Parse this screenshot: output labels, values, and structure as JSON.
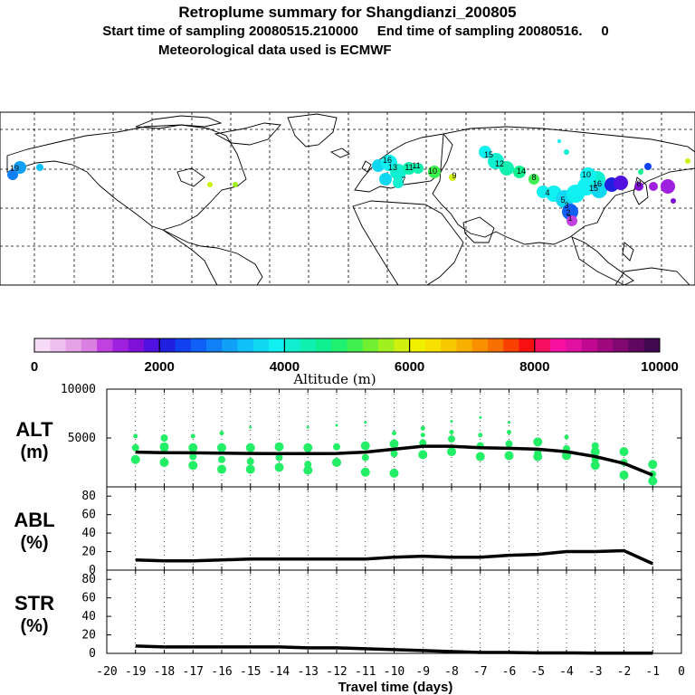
{
  "title": {
    "line1": "Retroplume summary for Shangdianzi_200805",
    "line2": "Start time of sampling 20080515.210000     End time of sampling 20080516.     0",
    "line3": "Meteorological data used is ECMWF"
  },
  "colorbar": {
    "ticks": [
      "0",
      "2000",
      "4000",
      "6000",
      "8000",
      "10000"
    ],
    "label": "Altitude (m)",
    "colors": [
      "#f6dcf6",
      "#efc0ef",
      "#e6a2e6",
      "#da80e0",
      "#c040e0",
      "#a020e0",
      "#8010d8",
      "#5010e0",
      "#2020e0",
      "#1040f0",
      "#1060f8",
      "#1080f8",
      "#10a0f8",
      "#10c0f8",
      "#10d8f0",
      "#10f0f0",
      "#10f0d0",
      "#10f0b0",
      "#10f090",
      "#20f070",
      "#40f050",
      "#70f030",
      "#a0f020",
      "#d0f010",
      "#f0f000",
      "#f8e000",
      "#f8c800",
      "#f8b000",
      "#f89000",
      "#f87000",
      "#f84000",
      "#f81010",
      "#f81060",
      "#f810a0",
      "#e010a0",
      "#c00890",
      "#a00880",
      "#800870",
      "#600860",
      "#400850"
    ]
  },
  "map": {
    "labels": [
      "19",
      "16",
      "13",
      "11",
      "11",
      "7",
      "10",
      "9",
      "15",
      "12",
      "14",
      "8",
      "4",
      "5",
      "10",
      "15",
      "16",
      "3",
      "2",
      "1",
      "8"
    ]
  },
  "chart_data": [
    {
      "type": "line",
      "panel": "ALT",
      "title": "ALT\n(m)",
      "ylabel_line1": "ALT",
      "ylabel_line2": "(m)",
      "xlim": [
        -20,
        0
      ],
      "ylim": [
        0,
        10000
      ],
      "yticks": [
        "5000",
        "10000"
      ],
      "x": [
        -19,
        -18,
        -17,
        -16,
        -15,
        -14,
        -13,
        -12,
        -11,
        -10,
        -9,
        -8,
        -7,
        -6,
        -5,
        -4,
        -3,
        -2,
        -1
      ],
      "mean": [
        3550,
        3500,
        3480,
        3450,
        3420,
        3400,
        3400,
        3420,
        3550,
        3850,
        4150,
        4150,
        4000,
        3950,
        3850,
        3600,
        3100,
        2400,
        1200
      ],
      "scatter": [
        {
          "x": -19,
          "y": [
            2800,
            4000,
            5200
          ]
        },
        {
          "x": -18,
          "y": [
            2500,
            3800,
            4100,
            5000
          ]
        },
        {
          "x": -17,
          "y": [
            2200,
            3100,
            4000,
            5200
          ]
        },
        {
          "x": -16,
          "y": [
            1800,
            2800,
            4000,
            5500
          ]
        },
        {
          "x": -15,
          "y": [
            1800,
            2600,
            4000,
            6100
          ]
        },
        {
          "x": -14,
          "y": [
            2000,
            3000,
            4100
          ]
        },
        {
          "x": -13,
          "y": [
            1700,
            2300,
            4000,
            6100
          ]
        },
        {
          "x": -12,
          "y": [
            2500,
            4100,
            6300
          ]
        },
        {
          "x": -11,
          "y": [
            1500,
            3000,
            4200,
            6600
          ]
        },
        {
          "x": -10,
          "y": [
            1400,
            3400,
            4400,
            5500
          ]
        },
        {
          "x": -9,
          "y": [
            3300,
            4500,
            5300,
            6000
          ]
        },
        {
          "x": -8,
          "y": [
            3600,
            4900,
            5600,
            6700
          ]
        },
        {
          "x": -7,
          "y": [
            3100,
            4200,
            5300,
            7100
          ]
        },
        {
          "x": -6,
          "y": [
            3200,
            4400,
            5600,
            6600
          ]
        },
        {
          "x": -5,
          "y": [
            3100,
            3500,
            4600
          ]
        },
        {
          "x": -4,
          "y": [
            3200,
            3900,
            5100
          ]
        },
        {
          "x": -3,
          "y": [
            2200,
            2800,
            3600,
            4200
          ]
        },
        {
          "x": -2,
          "y": [
            1200,
            2500,
            3600
          ]
        },
        {
          "x": -1,
          "y": [
            600,
            1300,
            2300
          ]
        }
      ]
    },
    {
      "type": "line",
      "panel": "ABL",
      "ylabel_line1": "ABL",
      "ylabel_line2": "(%)",
      "xlim": [
        -20,
        0
      ],
      "ylim": [
        0,
        90
      ],
      "yticks": [
        "0",
        "20",
        "40",
        "60",
        "80"
      ],
      "x": [
        -19,
        -18,
        -17,
        -16,
        -15,
        -14,
        -13,
        -12,
        -11,
        -10,
        -9,
        -8,
        -7,
        -6,
        -5,
        -4,
        -3,
        -2,
        -1
      ],
      "values": [
        11,
        10,
        10,
        11,
        12,
        12,
        12,
        12,
        12,
        14,
        15,
        14,
        14,
        16,
        17,
        20,
        20,
        21,
        7
      ]
    },
    {
      "type": "line",
      "panel": "STR",
      "ylabel_line1": "STR",
      "ylabel_line2": "(%)",
      "xlim": [
        -20,
        0
      ],
      "ylim": [
        0,
        90
      ],
      "yticks": [
        "0",
        "20",
        "40",
        "60",
        "80"
      ],
      "x": [
        -19,
        -18,
        -17,
        -16,
        -15,
        -14,
        -13,
        -12,
        -11,
        -10,
        -9,
        -8,
        -7,
        -6,
        -5,
        -4,
        -3,
        -2,
        -1
      ],
      "values": [
        8,
        7,
        7,
        7,
        7,
        7,
        6,
        6,
        5,
        4,
        3,
        2,
        1,
        1,
        0.5,
        0.5,
        0.3,
        0.2,
        0.2
      ]
    }
  ],
  "xaxis": {
    "label": "Travel time (days)",
    "ticks": [
      "-20",
      "-19",
      "-18",
      "-17",
      "-16",
      "-15",
      "-14",
      "-13",
      "-12",
      "-11",
      "-10",
      "-9",
      "-8",
      "-7",
      "-6",
      "-5",
      "-4",
      "-3",
      "-2",
      "-1",
      "0"
    ]
  },
  "style": {
    "scatter_color": "#22ee66",
    "line_color": "#000000"
  }
}
